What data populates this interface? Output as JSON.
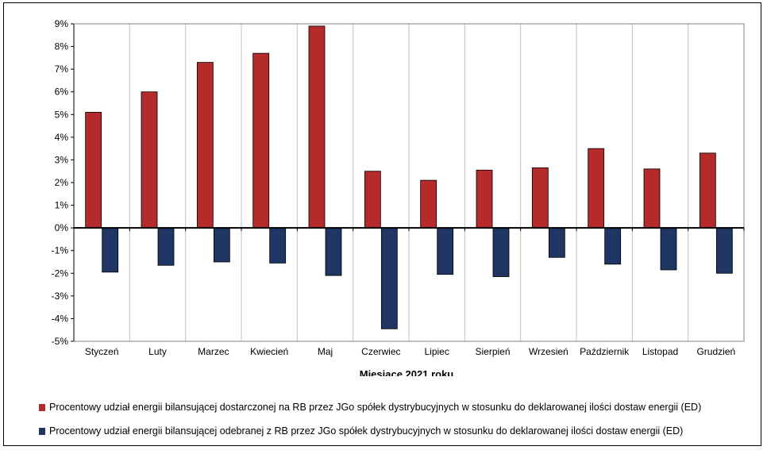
{
  "chart_data": {
    "type": "bar",
    "categories": [
      "Styczeń",
      "Luty",
      "Marzec",
      "Kwiecień",
      "Maj",
      "Czerwiec",
      "Lipiec",
      "Sierpień",
      "Wrzesień",
      "Październik",
      "Listopad",
      "Grudzień"
    ],
    "series": [
      {
        "name": "Procentowy udział energii bilansującej dostarczonej na RB przez JGo spółek dystrybucyjnych w stosunku do deklarowanej ilości dostaw energii (ED)",
        "color": "#b52a2a",
        "values": [
          5.1,
          6.0,
          7.3,
          7.7,
          8.9,
          2.5,
          2.1,
          2.55,
          2.65,
          3.5,
          2.6,
          3.3
        ]
      },
      {
        "name": "Procentowy udział energii bilansującej odebranej z RB przez JGo spółek dystrybucyjnych w stosunku do deklarowanej ilości dostaw energii (ED)",
        "color": "#1f3564",
        "values": [
          -1.95,
          -1.65,
          -1.5,
          -1.55,
          -2.1,
          -4.45,
          -2.05,
          -2.15,
          -1.3,
          -1.6,
          -1.85,
          -2.0
        ]
      }
    ],
    "xlabel": "Miesiące 2021  roku",
    "ylabel": "",
    "ylim": [
      -5,
      9
    ],
    "yticks": [
      "9%",
      "8%",
      "7%",
      "6%",
      "5%",
      "4%",
      "3%",
      "2%",
      "1%",
      "0%",
      "-1%",
      "-2%",
      "-3%",
      "-4%",
      "-5%"
    ],
    "grid": "vertical",
    "legend_position": "bottom"
  }
}
